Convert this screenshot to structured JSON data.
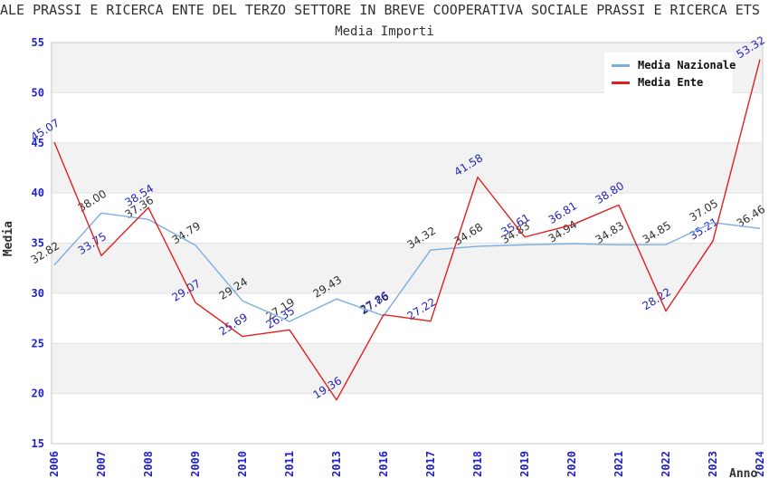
{
  "title": "ALE PRASSI E RICERCA ENTE DEL TERZO SETTORE IN BREVE COOPERATIVA SOCIALE PRASSI E RICERCA ETS (",
  "subtitle": "Media Importi",
  "axes": {
    "y_label": "Media",
    "x_label": "Anno"
  },
  "legend": {
    "items": [
      {
        "label": "Media Nazionale",
        "color": "#7aafe0"
      },
      {
        "label": "Media Ente",
        "color": "#e02020"
      }
    ]
  },
  "colors": {
    "axis_tick_blue": "#2222cc",
    "band_gray": "#f2f2f2",
    "gridline": "#e2e2e2",
    "plot_border": "#c8c8c8",
    "nazionale_line": "#7aafe0",
    "ente_line": "#e02020",
    "nazionale_label": "#303030",
    "ente_label": "#2424bb"
  },
  "chart_data": {
    "type": "line",
    "title": "Media Importi",
    "xlabel": "Anno",
    "ylabel": "Media",
    "categories": [
      "2006",
      "2007",
      "2008",
      "2009",
      "2010",
      "2011",
      "2013",
      "2016",
      "2017",
      "2018",
      "2019",
      "2020",
      "2021",
      "2022",
      "2023",
      "2024"
    ],
    "series": [
      {
        "name": "Media Nazionale",
        "color": "#7aafe0",
        "label_color": "#303030",
        "values": [
          32.82,
          38.0,
          37.36,
          34.79,
          29.24,
          27.19,
          29.43,
          27.76,
          34.32,
          34.68,
          34.83,
          34.94,
          34.83,
          34.85,
          37.05,
          36.46
        ]
      },
      {
        "name": "Media Ente",
        "color": "#e02020",
        "label_color": "#2424bb",
        "values": [
          45.07,
          33.75,
          38.54,
          29.07,
          25.69,
          26.35,
          19.36,
          27.86,
          27.22,
          41.58,
          35.61,
          36.81,
          38.8,
          28.22,
          35.21,
          53.32
        ]
      }
    ],
    "ylim": [
      15,
      55
    ],
    "yticks": [
      15,
      20,
      25,
      30,
      35,
      40,
      45,
      50,
      55
    ],
    "grid": true,
    "banded_background": true,
    "legend_position": "top-right"
  }
}
